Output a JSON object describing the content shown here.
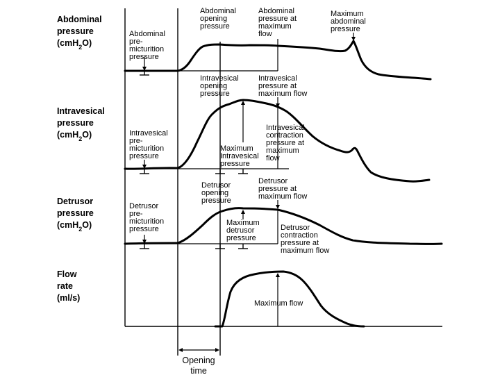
{
  "panels": {
    "abdominal": {
      "title": [
        "Abdominal",
        "pressure",
        "(cmH2O)"
      ]
    },
    "intravesical": {
      "title": [
        "Intravesical",
        "pressure",
        "(cmH2O)"
      ]
    },
    "detrusor": {
      "title": [
        "Detrusor",
        "pressure",
        "(cmH2O)"
      ]
    },
    "flow": {
      "title": [
        "Flow",
        "rate",
        "(ml/s)"
      ]
    }
  },
  "labels": {
    "abd_premicturition": [
      "Abdominal",
      "pre-",
      "micturition",
      "pressure"
    ],
    "abd_opening": [
      "Abdominal",
      "opening",
      "pressure"
    ],
    "abd_at_max_flow": [
      "Abdominal",
      "pressure at",
      "maximum",
      "flow"
    ],
    "abd_maximum": [
      "Maximum",
      "abdominal",
      "pressure"
    ],
    "ives_premicturition": [
      "Intravesical",
      "pre-",
      "micturition",
      "pressure"
    ],
    "ives_opening": [
      "Intravesical",
      "opening",
      "pressure"
    ],
    "ives_at_max_flow": [
      "Intravesical",
      "pressure at",
      "maximum flow"
    ],
    "ives_contraction": [
      "Intravesical",
      "contraction",
      "pressure at",
      "maximum",
      "flow"
    ],
    "ives_maximum": [
      "Maximum",
      "Intravesical",
      "pressure"
    ],
    "det_premicturition": [
      "Detrusor",
      "pre-",
      "micturition",
      "pressure"
    ],
    "det_opening": [
      "Detrusor",
      "opening",
      "pressure"
    ],
    "det_at_max_flow": [
      "Detrusor",
      "pressure at",
      "maximum flow"
    ],
    "det_maximum": [
      "Maximum",
      "detrusor",
      "pressure"
    ],
    "det_contraction": [
      "Detrusor",
      "contraction",
      "pressure at",
      "maximum flow"
    ],
    "max_flow": [
      "Maximum flow"
    ],
    "opening_time": [
      "Opening",
      "time"
    ]
  }
}
